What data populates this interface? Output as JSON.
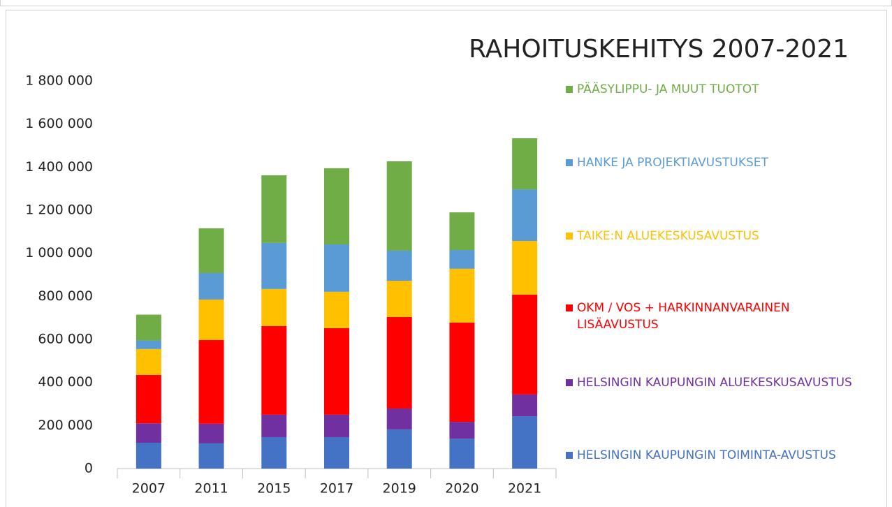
{
  "chart_data": {
    "type": "stacked_bar",
    "title": "RAHOITUSKEHITYS 2007-2021",
    "categories": [
      "2007",
      "2011",
      "2015",
      "2017",
      "2019",
      "2020",
      "2021"
    ],
    "series": [
      {
        "name": "HELSINGIN KAUPUNGIN TOIMINTA-AVUSTUS",
        "color": "#4472c4",
        "values": [
          120000,
          117000,
          146000,
          146000,
          182000,
          139000,
          243000
        ]
      },
      {
        "name": "HELSINGIN KAUPUNGIN ALUEKESKUSAVUSTUS",
        "color": "#7030a0",
        "values": [
          90000,
          91000,
          104000,
          104000,
          97000,
          78000,
          101000
        ]
      },
      {
        "name": "OKM / VOS + HARKINNANVARAINEN LISÄAVUSTUS",
        "color": "#ff0000",
        "values": [
          225000,
          389000,
          412000,
          402000,
          425000,
          461000,
          464000
        ]
      },
      {
        "name": "TAIKE:N ALUEKESKUSAVUSTUS",
        "color": "#ffc000",
        "values": [
          120000,
          188000,
          172000,
          169000,
          168000,
          250000,
          249000
        ]
      },
      {
        "name": "HANKE JA PROJEKTIAVUSTUKSET",
        "color": "#5b9bd5",
        "values": [
          40000,
          123000,
          214000,
          220000,
          140000,
          87000,
          240000
        ]
      },
      {
        "name": "PÄÄSYLIPPU- JA MUUT TUOTOT",
        "color": "#70ad47",
        "values": [
          120000,
          208000,
          314000,
          354000,
          415000,
          175000,
          237000
        ]
      }
    ],
    "ylim": [
      0,
      1800000
    ],
    "yticks": [
      0,
      {
        "value": 200000,
        "label": "200 000"
      },
      {
        "value": 400000,
        "label": "400 000"
      },
      {
        "value": 600000,
        "label": "600 000"
      },
      {
        "value": 800000,
        "label": "800 000"
      },
      {
        "value": 1000000,
        "label": "1 000 000"
      },
      {
        "value": 1200000,
        "label": "1 200 000"
      },
      {
        "value": 1400000,
        "label": "1 400 000"
      },
      {
        "value": 1600000,
        "label": "1 600 000"
      },
      {
        "value": 1800000,
        "label": "1 800 000"
      }
    ],
    "grid": false,
    "legend": "right"
  }
}
